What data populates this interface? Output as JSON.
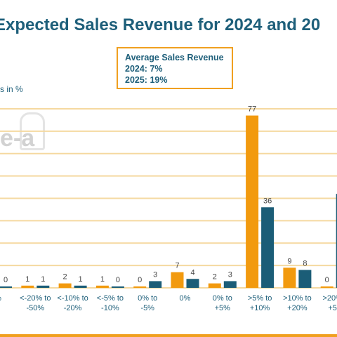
{
  "title": "Expected Sales Revenue for 2024 and 20",
  "ylabel": "s in %",
  "watermark_text": "e-a",
  "legend_box": {
    "heading": "Average Sales Revenue",
    "line1": "2024: 7%",
    "line2": "2025: 19%"
  },
  "colors": {
    "series_2024": "#f29a0e",
    "series_2025": "#1b5d77",
    "grid": "#f5d9a0"
  },
  "chart_data": {
    "type": "bar",
    "categories": [
      "%",
      "<-20% to -50%",
      "<-10% to -20%",
      "<-5% to -10%",
      "0% to -5%",
      "0%",
      "0% to +5%",
      ">5% to +10%",
      ">10% to +20%",
      ">20% to +50%"
    ],
    "category_lines": [
      [
        "%"
      ],
      [
        "<-20% to",
        "-50%"
      ],
      [
        "<-10% to",
        "-20%"
      ],
      [
        "<-5% to",
        "-10%"
      ],
      [
        "0% to",
        "-5%"
      ],
      [
        "0%"
      ],
      [
        "0% to",
        "+5%"
      ],
      [
        ">5% to",
        "+10%"
      ],
      [
        ">10% to",
        "+20%"
      ],
      [
        ">20% t",
        "+50"
      ]
    ],
    "series": [
      {
        "values": [
          0,
          1,
          2,
          1,
          0,
          7,
          2,
          77,
          9,
          0
        ]
      },
      {
        "values": [
          0,
          1,
          1,
          0,
          3,
          4,
          3,
          36,
          8,
          42
        ]
      }
    ],
    "ylim": [
      0,
      80
    ],
    "grid": true
  }
}
